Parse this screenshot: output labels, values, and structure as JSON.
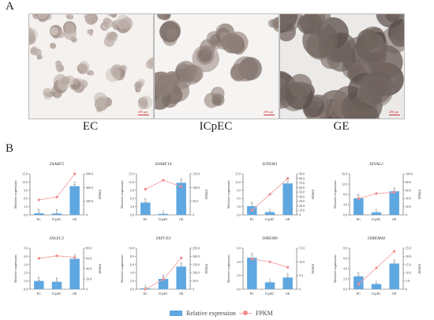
{
  "panel_a": {
    "letter": "A",
    "photos": [
      {
        "label": "EC",
        "scale": "200 μm"
      },
      {
        "label": "ICpEC",
        "scale": "200 μm"
      },
      {
        "label": "GE",
        "scale": "200 μm"
      }
    ]
  },
  "panel_b": {
    "letter": "B"
  },
  "legend": {
    "bar_label": "Relative expression",
    "line_label": "FPKM"
  },
  "colors": {
    "bar": "#5fa7e0",
    "line": "#f28b8b",
    "line_stroke": "#f5a3a3"
  },
  "chart_data": [
    {
      "type": "bar",
      "title": "DlARF5",
      "categories": [
        "EC",
        "ICpEC",
        "GE"
      ],
      "values": [
        0.6,
        0.5,
        10.5
      ],
      "letters": [
        "b",
        "b",
        "a"
      ],
      "line_values": [
        220,
        260,
        600
      ],
      "ylabel": "Relative expression",
      "y2label": "FPKM",
      "ylim": [
        0,
        15
      ],
      "yticks": [
        "0.0",
        "3.0",
        "6.0",
        "9.0",
        "12.0",
        "15.0"
      ],
      "y2lim": [
        0,
        600
      ],
      "y2ticks": [
        "0",
        "200.0",
        "400.0",
        "600.0"
      ]
    },
    {
      "type": "bar",
      "title": "DlARF16",
      "categories": [
        "EC",
        "ICpEC",
        "GE"
      ],
      "values": [
        4.8,
        0.4,
        12.5
      ],
      "letters": [
        "b",
        "c",
        "a"
      ],
      "line_values": [
        100,
        135,
        110
      ],
      "ylabel": "Relative expression",
      "y2label": "FPKM",
      "ylim": [
        0,
        16
      ],
      "yticks": [
        "0.0",
        "3.0",
        "6.0",
        "9.0",
        "12.0",
        "15.0"
      ],
      "y2lim": [
        0,
        160
      ],
      "y2ticks": [
        "0",
        "50.0",
        "100.0",
        "150.0"
      ]
    },
    {
      "type": "bar",
      "title": "DlTEM1",
      "categories": [
        "EC",
        "ICpEC",
        "GE"
      ],
      "values": [
        3.2,
        1.0,
        11.5
      ],
      "letters": [
        "b",
        "c",
        "a"
      ],
      "line_values": [
        10,
        45,
        80
      ],
      "ylabel": "Relative expression",
      "y2label": "FPKM",
      "ylim": [
        0,
        15
      ],
      "yticks": [
        "0.0",
        "3.0",
        "6.0",
        "9.0",
        "12.0",
        "15.0"
      ],
      "y2lim": [
        0,
        90
      ],
      "y2ticks": [
        "0",
        "10.0",
        "20.0",
        "30.0",
        "40.0",
        "50.0",
        "60.0",
        "70.0",
        "80.0",
        "90.0"
      ]
    },
    {
      "type": "bar",
      "title": "DlVAL2",
      "categories": [
        "EC",
        "ICpEC",
        "GE"
      ],
      "values": [
        6.5,
        1.0,
        9.2
      ],
      "letters": [
        "b",
        "c",
        "a"
      ],
      "line_values": [
        40,
        52,
        55
      ],
      "ylabel": "Relative expression",
      "y2label": "FPKM",
      "ylim": [
        0,
        16
      ],
      "yticks": [
        "0.0",
        "4.0",
        "8.0",
        "12.0",
        "16.0"
      ],
      "y2lim": [
        0,
        100
      ],
      "y2ticks": [
        "0",
        "20.0",
        "40.0",
        "60.0",
        "80.0",
        "100.0"
      ]
    },
    {
      "type": "bar",
      "title": "DlLEC2",
      "categories": [
        "EC",
        "ICpEC",
        "GE"
      ],
      "values": [
        1.0,
        0.9,
        3.7
      ],
      "letters": [
        "b",
        "b",
        "a"
      ],
      "line_values": [
        60,
        65,
        62
      ],
      "ylabel": "Relative expression",
      "y2label": "FPKM",
      "ylim": [
        0,
        5
      ],
      "yticks": [
        "0.0",
        "1.0",
        "2.0",
        "3.0",
        "4.0",
        "5.0"
      ],
      "y2lim": [
        0,
        80
      ],
      "y2ticks": [
        "0",
        "20.0",
        "40.0",
        "60.0",
        "80.0"
      ]
    },
    {
      "type": "bar",
      "title": "DlFUS3",
      "categories": [
        "EC",
        "ICpEC",
        "GE"
      ],
      "values": [
        0.2,
        2.5,
        5.5
      ],
      "letters": [
        "c",
        "b",
        "a"
      ],
      "line_values": [
        0,
        60,
        190
      ],
      "ylabel": "Relative expression",
      "y2label": "FPKM",
      "ylim": [
        0,
        10
      ],
      "yticks": [
        "0.0",
        "2.0",
        "4.0",
        "6.0",
        "8.0",
        "10.0"
      ],
      "y2lim": [
        0,
        250
      ],
      "y2ticks": [
        "0",
        "50.0",
        "100.0",
        "150.0",
        "200.0",
        "250.0"
      ]
    },
    {
      "type": "bar",
      "title": "DlREM9",
      "categories": [
        "EC",
        "ICpEC",
        "GE"
      ],
      "values": [
        4.6,
        1.0,
        1.7
      ],
      "letters": [
        "a",
        "c",
        "b"
      ],
      "line_values": [
        11,
        10,
        8
      ],
      "ylabel": "Relative expression",
      "y2label": "FPKM",
      "ylim": [
        0,
        6
      ],
      "yticks": [
        "0.0",
        "2.0",
        "4.0",
        "6.0"
      ],
      "y2lim": [
        0,
        15
      ],
      "y2ticks": [
        "0",
        "5.0",
        "10.0",
        "15.0"
      ]
    },
    {
      "type": "bar",
      "title": "DlREM40",
      "categories": [
        "EC",
        "ICpEC",
        "GE"
      ],
      "values": [
        2.5,
        1.0,
        5.0
      ],
      "letters": [
        "b",
        "c",
        "a"
      ],
      "line_values": [
        3,
        13,
        23
      ],
      "ylabel": "Relative expression",
      "y2label": "FPKM",
      "ylim": [
        0,
        8
      ],
      "yticks": [
        "0.0",
        "2.0",
        "4.0",
        "6.0",
        "8.0"
      ],
      "y2lim": [
        0,
        25
      ],
      "y2ticks": [
        "0",
        "5.0",
        "10.0",
        "15.0",
        "20.0",
        "25.0"
      ]
    }
  ]
}
